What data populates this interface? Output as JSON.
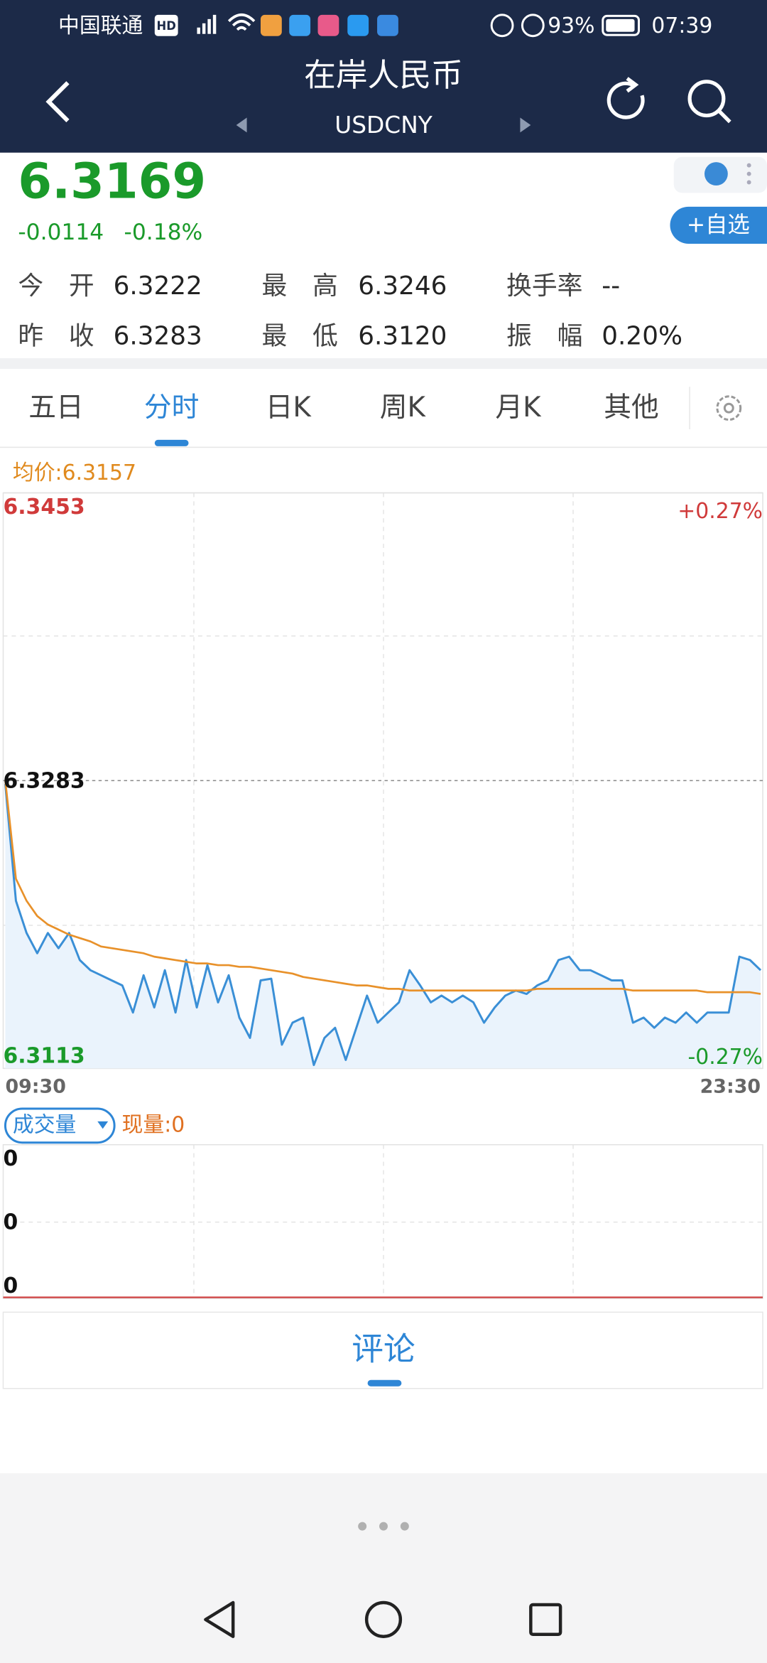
{
  "status_bar": {
    "carrier": "中国联通",
    "hd": "HD",
    "battery": "93%",
    "time": "07:39"
  },
  "header": {
    "title": "在岸人民币",
    "symbol": "USDCNY"
  },
  "quote": {
    "price": "6.3169",
    "change": "-0.0114",
    "change_pct": "-0.18%",
    "watch_button": "+自选"
  },
  "stats": [
    [
      {
        "label": "今　开",
        "value": "6.3222"
      },
      {
        "label": "最　高",
        "value": "6.3246"
      },
      {
        "label": "换手率",
        "value": "--"
      }
    ],
    [
      {
        "label": "昨　收",
        "value": "6.3283"
      },
      {
        "label": "最　低",
        "value": "6.3120"
      },
      {
        "label": "振　幅",
        "value": "0.20%"
      }
    ]
  ],
  "tabs": [
    "五日",
    "分时",
    "日K",
    "周K",
    "月K",
    "其他"
  ],
  "active_tab": 1,
  "avg_price_label": "均价:6.3157",
  "chart_data": {
    "type": "line",
    "categories": [
      "09:30",
      null,
      null,
      null,
      null,
      null,
      null,
      null,
      null,
      null,
      null,
      null,
      null,
      null,
      null,
      null,
      null,
      null,
      null,
      null,
      null,
      null,
      null,
      null,
      null,
      null,
      null,
      null,
      null,
      null,
      null,
      null,
      null,
      null,
      null,
      null,
      null,
      null,
      null,
      null,
      null,
      null,
      null,
      null,
      null,
      null,
      null,
      null,
      null,
      null,
      null,
      null,
      null,
      null,
      null,
      null,
      null,
      null,
      null,
      null,
      null,
      null,
      null,
      null,
      null,
      null,
      null,
      null,
      null,
      null,
      null,
      "23:30"
    ],
    "series": [
      {
        "color": "#3a8fd6",
        "values": [
          6.3281,
          6.3212,
          6.3193,
          6.3181,
          6.3193,
          6.3184,
          6.3193,
          6.3177,
          6.3171,
          6.3168,
          6.3165,
          6.3162,
          6.3146,
          6.3168,
          6.3149,
          6.3171,
          6.3146,
          6.3177,
          6.3149,
          6.3174,
          6.3152,
          6.3168,
          6.3143,
          6.3131,
          6.3165,
          6.3166,
          6.3127,
          6.314,
          6.3143,
          6.3115,
          6.3131,
          6.3137,
          6.3118,
          6.3137,
          6.3156,
          6.314,
          6.3146,
          6.3152,
          6.3171,
          6.3162,
          6.3152,
          6.3156,
          6.3152,
          6.3156,
          6.3152,
          6.314,
          6.3149,
          6.3156,
          6.3159,
          6.3157,
          6.3162,
          6.3165,
          6.3177,
          6.3179,
          6.3171,
          6.3171,
          6.3168,
          6.3165,
          6.3165,
          6.314,
          6.3143,
          6.3137,
          6.3143,
          6.314,
          6.3146,
          6.314,
          6.3146,
          6.3146,
          6.3146,
          6.3179,
          6.3177,
          6.3171
        ]
      },
      {
        "color": "#e8912a",
        "values": [
          6.3283,
          6.3225,
          6.3212,
          6.3203,
          6.3198,
          6.3195,
          6.3192,
          6.319,
          6.3188,
          6.3185,
          6.3184,
          6.3183,
          6.3182,
          6.3181,
          6.3179,
          6.3178,
          6.3177,
          6.3176,
          6.3175,
          6.3175,
          6.3174,
          6.3174,
          6.3173,
          6.3173,
          6.3172,
          6.3171,
          6.317,
          6.3169,
          6.3167,
          6.3166,
          6.3165,
          6.3164,
          6.3163,
          6.3162,
          6.3162,
          6.3161,
          6.316,
          6.316,
          6.3159,
          6.3159,
          6.3159,
          6.3159,
          6.3159,
          6.3159,
          6.3159,
          6.3159,
          6.3159,
          6.3159,
          6.3159,
          6.3159,
          6.316,
          6.316,
          6.316,
          6.316,
          6.316,
          6.316,
          6.316,
          6.316,
          6.316,
          6.3159,
          6.3159,
          6.3159,
          6.3159,
          6.3159,
          6.3159,
          6.3159,
          6.3158,
          6.3158,
          6.3158,
          6.3158,
          6.3158,
          6.3157
        ]
      }
    ],
    "ylim": [
      6.3113,
      6.3453
    ],
    "yticks": [
      6.3113,
      6.3283,
      6.3453
    ],
    "y2lim": [
      -0.27,
      0.27
    ],
    "y2ticks": [
      {
        "value": -0.27,
        "label": "-0.27%"
      },
      {
        "value": 0.27,
        "label": "+0.27%"
      }
    ],
    "area": true
  },
  "volume": {
    "selector": "成交量",
    "current": "现量:0",
    "axis_labels": [
      "0",
      "0",
      "0"
    ]
  },
  "comments_tab": "评论"
}
